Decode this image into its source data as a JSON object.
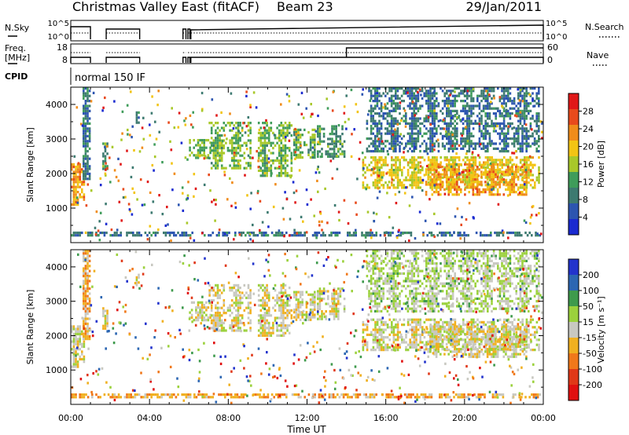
{
  "header": {
    "station": "Christmas Valley East (fitACF)",
    "beam": "Beam 23",
    "date": "29/Jan/2011"
  },
  "aux_panels": {
    "nsky_label": "N.Sky",
    "nsearch_label": "N.Search",
    "noise_ticks": [
      "10^5",
      "10^0"
    ],
    "freq_label_top": "Freq.",
    "freq_label_bottom": "[MHz]",
    "freq_ticks": [
      "18",
      "8"
    ],
    "nave_label": "Nave",
    "nave_ticks": [
      "60",
      "0"
    ],
    "cpid_label": "CPID",
    "cpid_value": "normal 150 IF"
  },
  "colorbars": {
    "power": {
      "title": "Power [dB]",
      "colors": [
        "#1a2ad0",
        "#2c55b0",
        "#3d7a70",
        "#3f9c5a",
        "#a8c82a",
        "#f2c414",
        "#f08c1a",
        "#e84a1c",
        "#e01818"
      ],
      "ticks": [
        "4",
        "8",
        "12",
        "16",
        "20",
        "24",
        "28"
      ]
    },
    "velocity": {
      "title": "Velocity [m s⁻¹]",
      "colors": [
        "#2233cc",
        "#2c66b2",
        "#3e9a4c",
        "#9bd13c",
        "#c8c8c0",
        "#f0b020",
        "#f0781a",
        "#e03818",
        "#e01010"
      ],
      "ticks": [
        "200",
        "100",
        "50",
        "15",
        "-15",
        "-50",
        "-100",
        "-200"
      ]
    }
  },
  "chart_data": [
    {
      "panel": "power",
      "type": "heatmap",
      "xlabel": "",
      "ylabel": "Slant Range [km]",
      "xlim": [
        0,
        24
      ],
      "ylim": [
        0,
        4500
      ],
      "yticks": [
        1000,
        2000,
        3000,
        4000
      ],
      "cbar_range": [
        0,
        32
      ],
      "blobs": [
        {
          "t0": 0.0,
          "t1": 0.8,
          "r0": 1000,
          "r1": 2300,
          "v": 22
        },
        {
          "t0": 0.6,
          "t1": 1.1,
          "r0": 1800,
          "r1": 4500,
          "v": 8
        },
        {
          "t0": 1.6,
          "t1": 2.0,
          "r0": 2100,
          "r1": 2900,
          "v": 12
        },
        {
          "t0": 3.3,
          "t1": 3.6,
          "r0": 3400,
          "r1": 3800,
          "v": 8
        },
        {
          "t0": 6.0,
          "t1": 7.2,
          "r0": 2400,
          "r1": 3000,
          "v": 14
        },
        {
          "t0": 7.0,
          "t1": 9.2,
          "r0": 2100,
          "r1": 3500,
          "v": 14
        },
        {
          "t0": 9.5,
          "t1": 11.3,
          "r0": 1900,
          "r1": 3500,
          "v": 14
        },
        {
          "t0": 11.3,
          "t1": 12.5,
          "r0": 2400,
          "r1": 3300,
          "v": 13
        },
        {
          "t0": 12.5,
          "t1": 14.0,
          "r0": 2400,
          "r1": 3400,
          "v": 11
        },
        {
          "t0": 14.8,
          "t1": 23.9,
          "r0": 1500,
          "r1": 2500,
          "v": 18
        },
        {
          "t0": 18.0,
          "t1": 23.2,
          "r0": 1300,
          "r1": 2300,
          "v": 22
        },
        {
          "t0": 15.0,
          "t1": 23.9,
          "r0": 2600,
          "r1": 4500,
          "v": 8
        },
        {
          "t0": 0.0,
          "t1": 23.9,
          "r0": 120,
          "r1": 320,
          "v": 8
        }
      ],
      "noise_density": 0.04
    },
    {
      "panel": "velocity",
      "type": "heatmap",
      "xlabel": "Time UT",
      "ylabel": "Slant Range [km]",
      "xlim": [
        0,
        24
      ],
      "ylim": [
        0,
        4500
      ],
      "yticks": [
        1000,
        2000,
        3000,
        4000
      ],
      "xticks": [
        "00:00",
        "04:00",
        "08:00",
        "12:00",
        "16:00",
        "20:00",
        "00:00"
      ],
      "cbar_range": [
        -230,
        230
      ],
      "blobs": [
        {
          "t0": 0.0,
          "t1": 0.8,
          "r0": 1000,
          "r1": 2300,
          "v": 0
        },
        {
          "t0": 0.6,
          "t1": 1.1,
          "r0": 1800,
          "r1": 4500,
          "v": -60
        },
        {
          "t0": 1.6,
          "t1": 2.0,
          "r0": 2100,
          "r1": 2900,
          "v": -10
        },
        {
          "t0": 3.3,
          "t1": 3.6,
          "r0": 3400,
          "r1": 3800,
          "v": 0
        },
        {
          "t0": 6.0,
          "t1": 7.2,
          "r0": 2400,
          "r1": 3000,
          "v": 0
        },
        {
          "t0": 7.0,
          "t1": 9.2,
          "r0": 2100,
          "r1": 3500,
          "v": -5
        },
        {
          "t0": 9.5,
          "t1": 11.3,
          "r0": 1900,
          "r1": 3500,
          "v": -5
        },
        {
          "t0": 11.3,
          "t1": 12.5,
          "r0": 2400,
          "r1": 3300,
          "v": 0
        },
        {
          "t0": 12.5,
          "t1": 14.0,
          "r0": 2400,
          "r1": 3400,
          "v": 5
        },
        {
          "t0": 14.8,
          "t1": 23.9,
          "r0": 1500,
          "r1": 2500,
          "v": 0
        },
        {
          "t0": 18.0,
          "t1": 23.2,
          "r0": 1300,
          "r1": 2300,
          "v": 0
        },
        {
          "t0": 15.0,
          "t1": 23.9,
          "r0": 2600,
          "r1": 4500,
          "v": 30
        },
        {
          "t0": 0.0,
          "t1": 23.9,
          "r0": 120,
          "r1": 320,
          "v": -60
        }
      ],
      "noise_density": 0.04
    }
  ]
}
